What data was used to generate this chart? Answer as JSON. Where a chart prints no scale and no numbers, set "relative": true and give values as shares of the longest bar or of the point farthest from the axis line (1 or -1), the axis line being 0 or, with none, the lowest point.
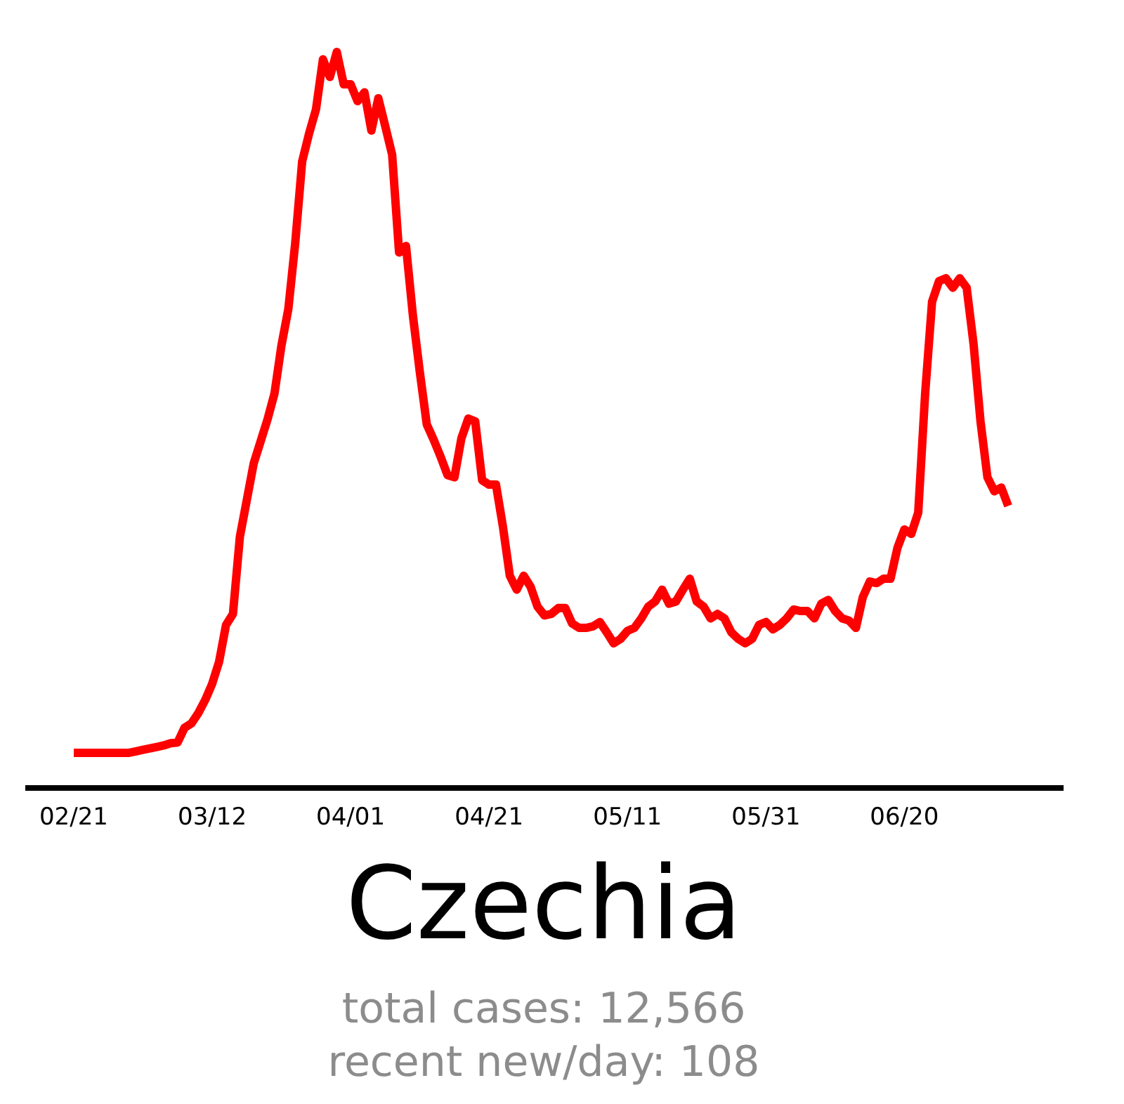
{
  "chart_data": {
    "type": "line",
    "title": "Czechia",
    "relative": true,
    "tick_labels": "x",
    "xlim": [
      "--02-14",
      "--07-13"
    ],
    "xticks": [
      {
        "value": "--02-21",
        "label": "02/21"
      },
      {
        "value": "--03-12",
        "label": "03/12"
      },
      {
        "value": "--04-01",
        "label": "04/01"
      },
      {
        "value": "--04-21",
        "label": "04/21"
      },
      {
        "value": "--05-11",
        "label": "05/11"
      },
      {
        "value": "--05-31",
        "label": "05/31"
      },
      {
        "value": "--06-20",
        "label": "06/20"
      }
    ],
    "x": [
      "--02-21",
      "--02-22",
      "--02-23",
      "--02-24",
      "--02-25",
      "--02-26",
      "--02-27",
      "--02-28",
      "--02-29",
      "--03-01",
      "--03-02",
      "--03-03",
      "--03-04",
      "--03-05",
      "--03-06",
      "--03-07",
      "--03-08",
      "--03-09",
      "--03-10",
      "--03-11",
      "--03-12",
      "--03-13",
      "--03-14",
      "--03-15",
      "--03-16",
      "--03-17",
      "--03-18",
      "--03-19",
      "--03-20",
      "--03-21",
      "--03-22",
      "--03-23",
      "--03-24",
      "--03-25",
      "--03-26",
      "--03-27",
      "--03-28",
      "--03-29",
      "--03-30",
      "--03-31",
      "--04-01",
      "--04-02",
      "--04-03",
      "--04-04",
      "--04-05",
      "--04-06",
      "--04-07",
      "--04-08",
      "--04-09",
      "--04-10",
      "--04-11",
      "--04-12",
      "--04-13",
      "--04-14",
      "--04-15",
      "--04-16",
      "--04-17",
      "--04-18",
      "--04-19",
      "--04-20",
      "--04-21",
      "--04-22",
      "--04-23",
      "--04-24",
      "--04-25",
      "--04-26",
      "--04-27",
      "--04-28",
      "--04-29",
      "--04-30",
      "--05-01",
      "--05-02",
      "--05-03",
      "--05-04",
      "--05-05",
      "--05-06",
      "--05-07",
      "--05-08",
      "--05-09",
      "--05-10",
      "--05-11",
      "--05-12",
      "--05-13",
      "--05-14",
      "--05-15",
      "--05-16",
      "--05-17",
      "--05-18",
      "--05-19",
      "--05-20",
      "--05-21",
      "--05-22",
      "--05-23",
      "--05-24",
      "--05-25",
      "--05-26",
      "--05-27",
      "--05-28",
      "--05-29",
      "--05-30",
      "--05-31",
      "--06-01",
      "--06-02",
      "--06-03",
      "--06-04",
      "--06-05",
      "--06-06",
      "--06-07",
      "--06-08",
      "--06-09",
      "--06-10",
      "--06-11",
      "--06-12",
      "--06-13",
      "--06-14",
      "--06-15",
      "--06-16",
      "--06-17",
      "--06-18",
      "--06-19",
      "--06-20",
      "--06-21",
      "--06-22",
      "--06-23",
      "--06-24",
      "--06-25",
      "--06-26",
      "--06-27",
      "--06-28",
      "--06-29",
      "--06-30",
      "--07-01",
      "--07-02",
      "--07-03",
      "--07-04",
      "--07-05"
    ],
    "series": [
      {
        "color": "#ff0000",
        "values": [
          0.046,
          0.046,
          0.046,
          0.046,
          0.046,
          0.046,
          0.046,
          0.046,
          0.046,
          0.048,
          0.05,
          0.052,
          0.054,
          0.056,
          0.059,
          0.06,
          0.08,
          0.086,
          0.1,
          0.118,
          0.14,
          0.17,
          0.22,
          0.235,
          0.34,
          0.39,
          0.44,
          0.47,
          0.5,
          0.535,
          0.6,
          0.65,
          0.74,
          0.851,
          0.889,
          0.922,
          0.99,
          0.966,
          1.0,
          0.956,
          0.956,
          0.933,
          0.945,
          0.893,
          0.937,
          0.899,
          0.86,
          0.727,
          0.736,
          0.641,
          0.564,
          0.493,
          0.472,
          0.449,
          0.424,
          0.421,
          0.474,
          0.501,
          0.497,
          0.417,
          0.411,
          0.411,
          0.354,
          0.287,
          0.268,
          0.287,
          0.272,
          0.245,
          0.233,
          0.235,
          0.243,
          0.243,
          0.222,
          0.216,
          0.216,
          0.218,
          0.224,
          0.21,
          0.195,
          0.201,
          0.212,
          0.216,
          0.229,
          0.245,
          0.252,
          0.268,
          0.249,
          0.252,
          0.268,
          0.283,
          0.252,
          0.245,
          0.229,
          0.235,
          0.229,
          0.21,
          0.201,
          0.195,
          0.201,
          0.22,
          0.224,
          0.214,
          0.22,
          0.229,
          0.241,
          0.239,
          0.239,
          0.229,
          0.249,
          0.254,
          0.239,
          0.229,
          0.226,
          0.216,
          0.258,
          0.279,
          0.277,
          0.283,
          0.283,
          0.325,
          0.35,
          0.344,
          0.373,
          0.535,
          0.66,
          0.688,
          0.692,
          0.679,
          0.692,
          0.679,
          0.602,
          0.497,
          0.421,
          0.402,
          0.407,
          0.382
        ]
      }
    ],
    "annotations": [
      "total cases: 12,566",
      "recent new/day: 108"
    ]
  }
}
